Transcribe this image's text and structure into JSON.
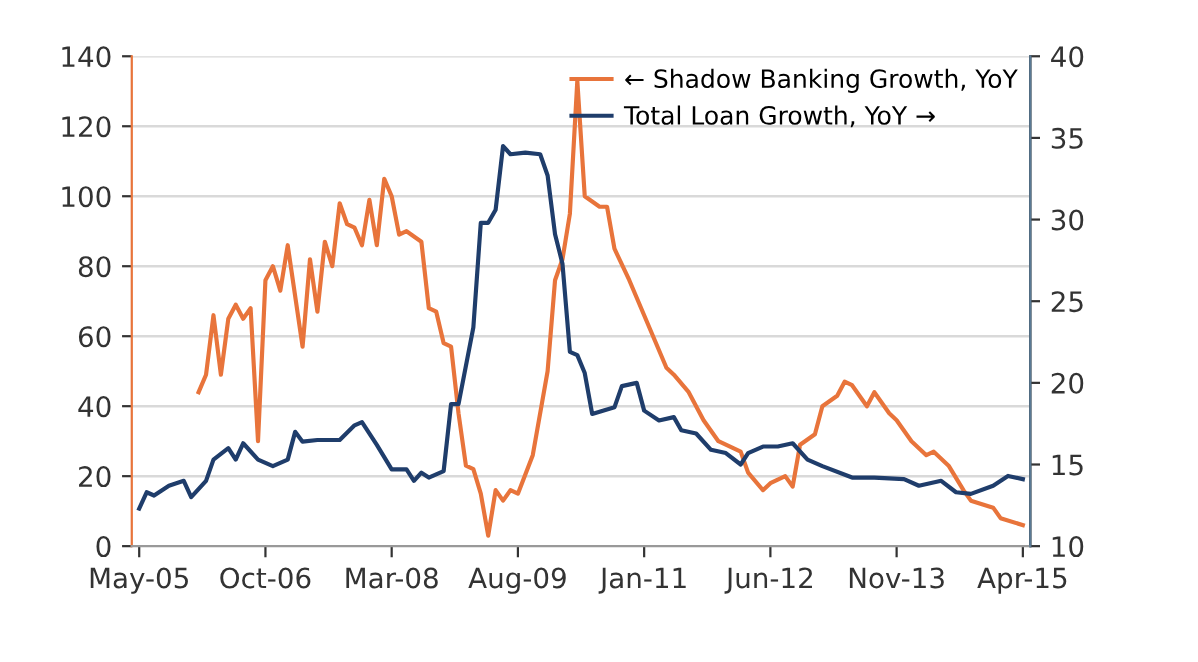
{
  "chart_data": {
    "type": "line",
    "xlim": [
      "2005-04",
      "2015-05"
    ],
    "xticks": [
      {
        "value": "2005-05",
        "label": "May-05"
      },
      {
        "value": "2006-10",
        "label": "Oct-06"
      },
      {
        "value": "2008-03",
        "label": "Mar-08"
      },
      {
        "value": "2009-08",
        "label": "Aug-09"
      },
      {
        "value": "2011-01",
        "label": "Jan-11"
      },
      {
        "value": "2012-06",
        "label": "Jun-12"
      },
      {
        "value": "2013-11",
        "label": "Nov-13"
      },
      {
        "value": "2015-04",
        "label": "Apr-15"
      }
    ],
    "ylim": [
      0,
      140
    ],
    "yticks": [
      0,
      20,
      40,
      60,
      80,
      100,
      120,
      140
    ],
    "y2lim": [
      10,
      40
    ],
    "y2ticks": [
      10,
      15,
      20,
      25,
      30,
      35,
      40
    ],
    "grid": "y",
    "legend": "top right",
    "line_style": "solid",
    "series": [
      {
        "name": "← Shadow Banking Growth, YoY",
        "color": "#e8743b",
        "x": [
          "2006-01",
          "2006-02",
          "2006-03",
          "2006-04",
          "2006-05",
          "2006-06",
          "2006-07",
          "2006-08",
          "2006-09",
          "2006-10",
          "2006-11",
          "2006-12",
          "2007-01",
          "2007-03",
          "2007-04",
          "2007-05",
          "2007-06",
          "2007-07",
          "2007-08",
          "2007-09",
          "2007-10",
          "2007-11",
          "2007-12",
          "2008-01",
          "2008-02",
          "2008-03",
          "2008-04",
          "2008-05",
          "2008-07",
          "2008-08",
          "2008-09",
          "2008-10",
          "2008-11",
          "2008-12",
          "2009-01",
          "2009-02",
          "2009-03",
          "2009-04",
          "2009-05",
          "2009-06",
          "2009-07",
          "2009-08",
          "2009-10",
          "2009-12",
          "2010-01",
          "2010-02",
          "2010-03",
          "2010-04",
          "2010-05",
          "2010-07",
          "2010-08",
          "2010-09",
          "2010-11",
          "2010-12",
          "2011-02",
          "2011-04",
          "2011-05",
          "2011-07",
          "2011-09",
          "2011-11",
          "2012-01",
          "2012-02",
          "2012-03",
          "2012-05",
          "2012-06",
          "2012-08",
          "2012-09",
          "2012-10",
          "2012-12",
          "2013-01",
          "2013-03",
          "2013-04",
          "2013-05",
          "2013-07",
          "2013-08",
          "2013-10",
          "2013-11",
          "2014-01",
          "2014-03",
          "2014-04",
          "2014-06",
          "2014-08",
          "2014-09",
          "2014-12",
          "2015-01",
          "2015-04"
        ],
        "values": [
          44,
          49,
          66,
          49,
          65,
          69,
          65,
          68,
          30,
          76,
          80,
          73,
          86,
          57,
          82,
          67,
          87,
          80,
          98,
          92,
          91,
          86,
          99,
          86,
          105,
          100,
          89,
          90,
          87,
          68,
          67,
          58,
          57,
          38,
          23,
          22,
          15,
          3,
          16,
          13,
          16,
          15,
          26,
          50,
          76,
          82,
          95,
          133,
          100,
          97,
          97,
          85,
          76,
          71,
          61,
          51,
          49,
          44,
          36,
          30,
          28,
          27,
          21,
          16,
          18,
          20,
          17,
          29,
          32,
          40,
          43,
          47,
          46,
          40,
          44,
          38,
          36,
          30,
          26,
          27,
          23,
          16,
          13,
          11,
          8,
          6
        ]
      },
      {
        "name": "Total Loan Growth, YoY →",
        "color": "#1f3d6b",
        "axis": "y2",
        "x": [
          "2005-05",
          "2005-06",
          "2005-07",
          "2005-09",
          "2005-11",
          "2005-12",
          "2006-02",
          "2006-03",
          "2006-05",
          "2006-06",
          "2006-07",
          "2006-09",
          "2006-11",
          "2007-01",
          "2007-02",
          "2007-03",
          "2007-05",
          "2007-08",
          "2007-10",
          "2007-11",
          "2008-01",
          "2008-03",
          "2008-05",
          "2008-06",
          "2008-07",
          "2008-08",
          "2008-10",
          "2008-11",
          "2008-12",
          "2009-02",
          "2009-03",
          "2009-04",
          "2009-05",
          "2009-06",
          "2009-07",
          "2009-09",
          "2009-11",
          "2009-12",
          "2010-01",
          "2010-02",
          "2010-03",
          "2010-04",
          "2010-05",
          "2010-06",
          "2010-09",
          "2010-10",
          "2010-12",
          "2011-01",
          "2011-03",
          "2011-05",
          "2011-06",
          "2011-08",
          "2011-10",
          "2011-12",
          "2012-02",
          "2012-03",
          "2012-05",
          "2012-07",
          "2012-09",
          "2012-11",
          "2013-01",
          "2013-05",
          "2013-08",
          "2013-12",
          "2014-02",
          "2014-05",
          "2014-07",
          "2014-09",
          "2014-12",
          "2015-02",
          "2015-04"
        ],
        "values": [
          12.3,
          13.3,
          13.1,
          13.7,
          14.0,
          13.0,
          14.0,
          15.3,
          16.0,
          15.3,
          16.3,
          15.3,
          14.9,
          15.3,
          17.0,
          16.4,
          16.5,
          16.5,
          17.4,
          17.6,
          16.2,
          14.7,
          14.7,
          14.0,
          14.5,
          14.2,
          14.6,
          18.7,
          18.7,
          23.4,
          29.8,
          29.8,
          30.6,
          34.5,
          34.0,
          34.1,
          34.0,
          32.7,
          29.1,
          27.3,
          21.9,
          21.7,
          20.6,
          18.1,
          18.5,
          19.8,
          20.0,
          18.3,
          17.7,
          17.9,
          17.1,
          16.9,
          15.9,
          15.7,
          15.0,
          15.7,
          16.1,
          16.1,
          16.3,
          15.3,
          14.9,
          14.2,
          14.2,
          14.1,
          13.7,
          14.0,
          13.3,
          13.2,
          13.7,
          14.3,
          14.1
        ]
      }
    ]
  }
}
